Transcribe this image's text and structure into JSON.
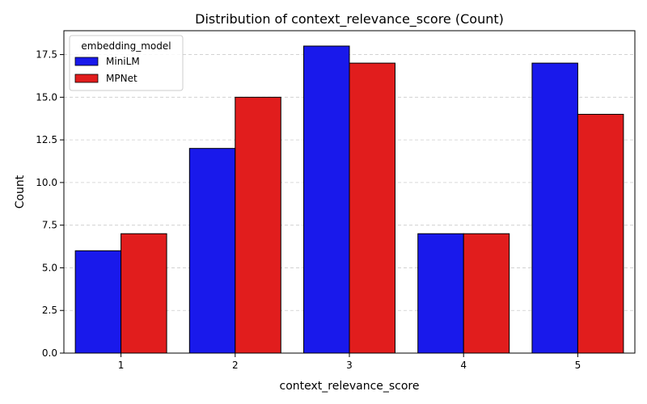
{
  "chart_data": {
    "type": "bar",
    "title": "Distribution of context_relevance_score (Count)",
    "xlabel": "context_relevance_score",
    "ylabel": "Count",
    "categories": [
      "1",
      "2",
      "3",
      "4",
      "5"
    ],
    "series": [
      {
        "name": "MiniLM",
        "color": "#1919eb",
        "values": [
          6,
          12,
          18,
          7,
          17
        ]
      },
      {
        "name": "MPNet",
        "color": "#e11d1d",
        "values": [
          7,
          15,
          17,
          7,
          14
        ]
      }
    ],
    "ylim": [
      0,
      18.9
    ],
    "yticks": [
      "0.0",
      "2.5",
      "5.0",
      "7.5",
      "10.0",
      "12.5",
      "15.0",
      "17.5"
    ],
    "grid": "y-dashed",
    "legend": {
      "title": "embedding_model",
      "placement": "top-left"
    }
  }
}
